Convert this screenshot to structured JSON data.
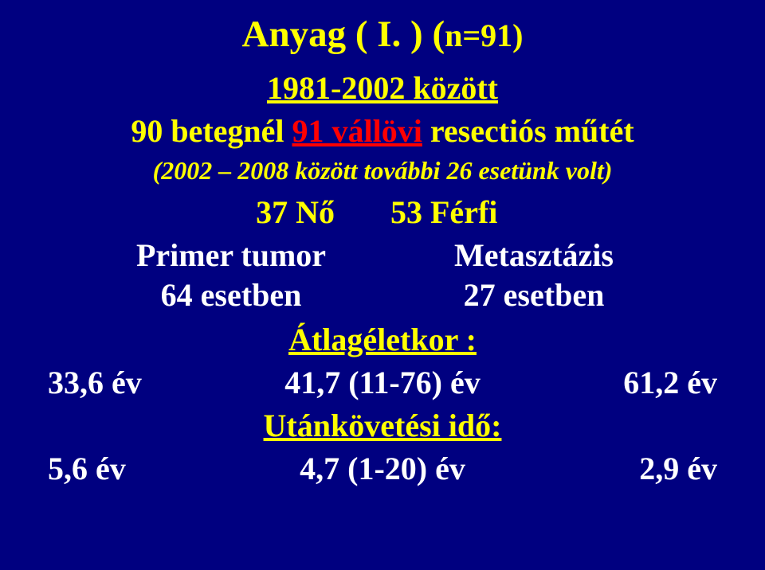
{
  "title_main": "Anyag ( I. ) (",
  "title_small": "n=91)",
  "period": "1981-2002 között",
  "patients_pre": "90 betegnél ",
  "patients_link": "91 vállövi",
  "patients_post": " resectiós műtét",
  "subnote": "(2002 – 2008  között további 26 esetünk volt)",
  "gender_left": "37 Nő",
  "gender_right": "53 Férfi",
  "primary_label": "Primer tumor",
  "primary_count": "64 esetben",
  "meta_label": "Metasztázis",
  "meta_count": "27 esetben",
  "avg_age_label": "Átlagéletkor :",
  "age_left": "33,6 év",
  "age_mid": "41,7 (11-76) év",
  "age_right": "61,2 év",
  "followup_label": "Utánkövetési idő:",
  "fu_left": "5,6 év",
  "fu_mid": "4,7 (1-20) év",
  "fu_right": "2,9 év"
}
